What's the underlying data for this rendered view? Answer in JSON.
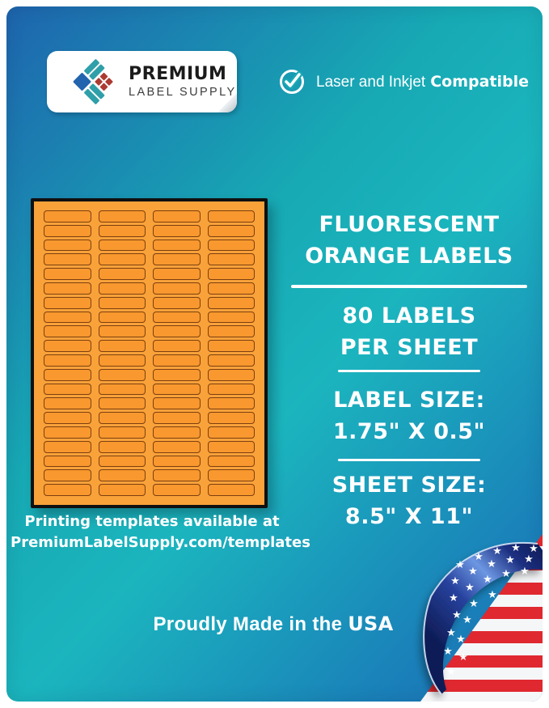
{
  "brand": {
    "line1": "PREMIUM",
    "line2": "LABEL SUPPLY"
  },
  "compatibility": {
    "text": "Laser and Inkjet",
    "bold": "Compatible"
  },
  "sheet_preview": {
    "rows": 20,
    "columns": 4
  },
  "templates_note": {
    "line1": "Printing templates available at",
    "line2": "PremiumLabelSupply.com/templates"
  },
  "right_panel": {
    "title": {
      "line1": "FLUORESCENT",
      "line2": "ORANGE LABELS"
    },
    "count": {
      "line1": "80 LABELS",
      "line2": "PER SHEET"
    },
    "label_size": {
      "line1": "LABEL SIZE:",
      "line2": "1.75\" X 0.5\""
    },
    "sheet_size": {
      "line1": "SHEET SIZE:",
      "line2": "8.5\" X 11\""
    }
  },
  "footer": {
    "text": "Proudly Made in the",
    "bold": "USA"
  },
  "colors": {
    "gradient_blue": "#1e65ae",
    "gradient_teal": "#1bb5be",
    "sheet_orange": "#f9a23a",
    "label_orange": "#f8982e",
    "label_border": "#7c3f10",
    "flag_red": "#df2830",
    "flag_blue": "#1c2f80",
    "logo_blue": "#2264ad",
    "logo_teal": "#2f9fa9",
    "logo_red": "#ac3a31",
    "text_white": "#ffffff"
  }
}
